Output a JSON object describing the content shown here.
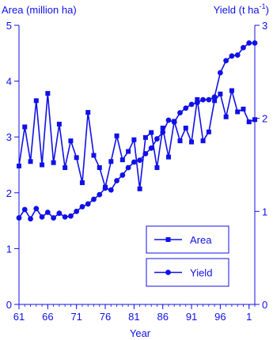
{
  "chart_data": {
    "type": "line",
    "xlabel": "Year",
    "y_left_label": "Area (million ha)",
    "y_right_label_main": "Yield (t ha",
    "y_right_label_sup": "-1",
    "y_right_label_close": ")",
    "x_ticks": [
      {
        "value": 1961,
        "label": "61"
      },
      {
        "value": 1966,
        "label": "66"
      },
      {
        "value": 1971,
        "label": "71"
      },
      {
        "value": 1976,
        "label": "76"
      },
      {
        "value": 1981,
        "label": "81"
      },
      {
        "value": 1986,
        "label": "86"
      },
      {
        "value": 1991,
        "label": "91"
      },
      {
        "value": 1996,
        "label": "96"
      },
      {
        "value": 2001,
        "label": "1"
      }
    ],
    "xlim": [
      1961,
      2002
    ],
    "y_left_ticks": [
      0,
      1,
      2,
      3,
      4,
      5
    ],
    "y_left_lim": [
      0,
      5
    ],
    "y_right_ticks": [
      0,
      1,
      2,
      3
    ],
    "y_right_lim": [
      0,
      3
    ],
    "colors": {
      "series": "#1010e8"
    },
    "legend_labels": [
      "Area",
      "Yield"
    ],
    "series": [
      {
        "name": "Area",
        "axis": "left",
        "marker": "square",
        "x": [
          1961,
          1962,
          1963,
          1964,
          1965,
          1966,
          1967,
          1968,
          1969,
          1970,
          1971,
          1972,
          1973,
          1974,
          1975,
          1976,
          1977,
          1978,
          1979,
          1980,
          1981,
          1982,
          1983,
          1984,
          1985,
          1986,
          1987,
          1988,
          1989,
          1990,
          1991,
          1992,
          1993,
          1994,
          1995,
          1996,
          1997,
          1998,
          1999,
          2000,
          2001,
          2002
        ],
        "values": [
          2.48,
          3.18,
          2.56,
          3.65,
          2.5,
          3.78,
          2.54,
          3.23,
          2.45,
          2.93,
          2.63,
          2.18,
          3.44,
          2.67,
          2.45,
          2.1,
          2.56,
          3.02,
          2.59,
          2.74,
          2.95,
          2.07,
          2.99,
          3.08,
          2.45,
          3.16,
          2.64,
          3.28,
          2.93,
          3.16,
          2.91,
          3.67,
          2.93,
          3.09,
          3.65,
          3.77,
          3.36,
          3.83,
          3.45,
          3.5,
          3.27,
          3.31
        ]
      },
      {
        "name": "Yield",
        "axis": "right",
        "marker": "circle",
        "x": [
          1961,
          1962,
          1963,
          1964,
          1965,
          1966,
          1967,
          1968,
          1969,
          1970,
          1971,
          1972,
          1973,
          1974,
          1975,
          1976,
          1977,
          1978,
          1979,
          1980,
          1981,
          1982,
          1983,
          1984,
          1985,
          1986,
          1987,
          1988,
          1989,
          1990,
          1991,
          1992,
          1993,
          1994,
          1995,
          1996,
          1997,
          1998,
          1999,
          2000,
          2001,
          2002
        ],
        "values": [
          0.93,
          1.02,
          0.92,
          1.03,
          0.94,
          0.99,
          0.93,
          0.98,
          0.94,
          0.95,
          1.0,
          1.05,
          1.08,
          1.13,
          1.18,
          1.25,
          1.23,
          1.33,
          1.39,
          1.47,
          1.53,
          1.55,
          1.62,
          1.68,
          1.78,
          1.85,
          1.98,
          1.96,
          2.06,
          2.11,
          2.15,
          2.17,
          2.2,
          2.2,
          2.23,
          2.49,
          2.62,
          2.67,
          2.68,
          2.76,
          2.81,
          2.81
        ]
      }
    ]
  }
}
